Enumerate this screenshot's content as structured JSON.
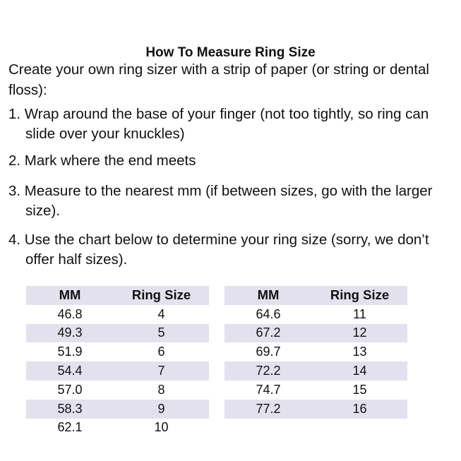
{
  "title": "How To Measure Ring Size",
  "intro": "Create your own ring sizer with a strip of paper (or string or dental floss):",
  "steps": [
    "1. Wrap around the base of your finger (not too tightly, so ring can slide over your knuckles)",
    "2. Mark where the end meets",
    "3. Measure to the nearest mm (if between sizes, go with the larger size).",
    "4. Use the chart below to determine your ring size (sorry, we don’t offer half sizes)."
  ],
  "table_headers": [
    "MM",
    "Ring Size"
  ],
  "left_rows": [
    [
      "46.8",
      "4"
    ],
    [
      "49.3",
      "5"
    ],
    [
      "51.9",
      "6"
    ],
    [
      "54.4",
      "7"
    ],
    [
      "57.0",
      "8"
    ],
    [
      "58.3",
      "9"
    ],
    [
      "62.1",
      "10"
    ]
  ],
  "right_rows": [
    [
      "64.6",
      "11"
    ],
    [
      "67.2",
      "12"
    ],
    [
      "69.7",
      "13"
    ],
    [
      "72.2",
      "14"
    ],
    [
      "74.7",
      "15"
    ],
    [
      "77.2",
      "16"
    ]
  ],
  "colors": {
    "stripe": "#e4e1ee"
  }
}
